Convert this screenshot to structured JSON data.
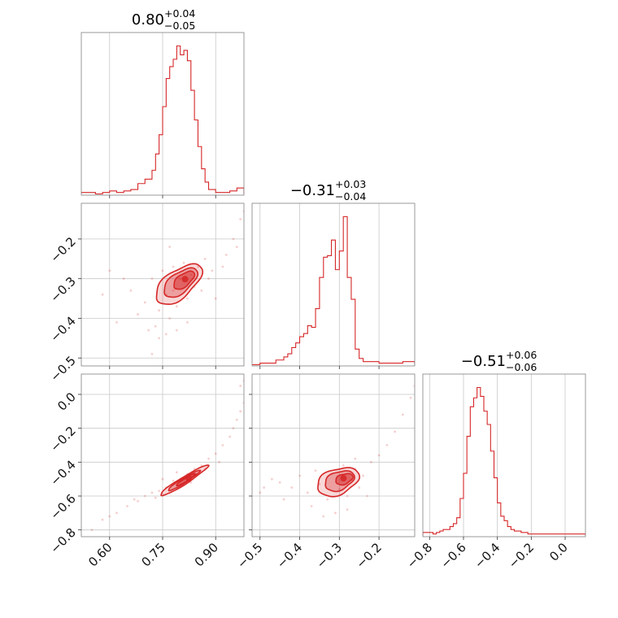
{
  "chart_data": {
    "type": "corner",
    "color": "#d62728",
    "parameters": [
      {
        "id": "p0",
        "median": 0.8,
        "title": {
          "value": "0.80",
          "plus": "+0.04",
          "minus": "−0.05"
        }
      },
      {
        "id": "p1",
        "median": -0.31,
        "title": {
          "value": "−0.31",
          "plus": "+0.03",
          "minus": "−0.04"
        }
      },
      {
        "id": "p2",
        "median": -0.51,
        "title": {
          "value": "−0.51",
          "plus": "+0.06",
          "minus": "−0.06"
        }
      }
    ],
    "axes": [
      {
        "range": [
          0.52,
          0.98
        ],
        "ticks": [
          0.6,
          0.75,
          0.9
        ],
        "ticklabels": [
          "0.60",
          "0.75",
          "0.90"
        ]
      },
      {
        "range": [
          -0.52,
          -0.11
        ],
        "ticks": [
          -0.5,
          -0.4,
          -0.3,
          -0.2
        ],
        "ticklabels": [
          "−0.5",
          "−0.4",
          "−0.3",
          "−0.2"
        ]
      },
      {
        "range": [
          -0.84,
          0.12
        ],
        "ticks": [
          -0.8,
          -0.6,
          -0.4,
          -0.2,
          0.0
        ],
        "ticklabels": [
          "−0.8",
          "−0.6",
          "−0.4",
          "−0.2",
          "0.0"
        ]
      }
    ],
    "histograms": [
      {
        "param": 0,
        "edges": [
          0.52,
          0.54,
          0.56,
          0.58,
          0.6,
          0.62,
          0.64,
          0.66,
          0.68,
          0.7,
          0.72,
          0.73,
          0.74,
          0.75,
          0.76,
          0.77,
          0.78,
          0.79,
          0.8,
          0.81,
          0.82,
          0.83,
          0.84,
          0.85,
          0.86,
          0.87,
          0.88,
          0.9,
          0.92,
          0.94,
          0.96,
          0.98
        ],
        "counts": [
          1,
          1,
          0,
          1,
          2,
          1,
          2,
          3,
          7,
          10,
          16,
          27,
          40,
          59,
          78,
          86,
          91,
          100,
          94,
          97,
          90,
          70,
          50,
          32,
          17,
          8,
          3,
          1,
          1,
          2,
          4
        ]
      },
      {
        "param": 1,
        "edges": [
          -0.52,
          -0.5,
          -0.48,
          -0.46,
          -0.44,
          -0.43,
          -0.42,
          -0.41,
          -0.4,
          -0.39,
          -0.38,
          -0.37,
          -0.36,
          -0.35,
          -0.34,
          -0.33,
          -0.32,
          -0.31,
          -0.3,
          -0.29,
          -0.28,
          -0.27,
          -0.26,
          -0.25,
          -0.24,
          -0.22,
          -0.2,
          -0.18,
          -0.16,
          -0.14,
          -0.11
        ],
        "counts": [
          0,
          1,
          1,
          3,
          5,
          7,
          11,
          14,
          18,
          20,
          25,
          24,
          36,
          56,
          69,
          70,
          80,
          61,
          73,
          95,
          56,
          42,
          10,
          4,
          2,
          2,
          1,
          1,
          1,
          2
        ]
      },
      {
        "param": 2,
        "edges": [
          -0.84,
          -0.82,
          -0.8,
          -0.78,
          -0.76,
          -0.74,
          -0.72,
          -0.7,
          -0.68,
          -0.66,
          -0.64,
          -0.62,
          -0.6,
          -0.58,
          -0.56,
          -0.54,
          -0.52,
          -0.5,
          -0.48,
          -0.46,
          -0.44,
          -0.42,
          -0.4,
          -0.38,
          -0.36,
          -0.34,
          -0.32,
          -0.3,
          -0.26,
          -0.22,
          -0.16,
          -0.1,
          0.0,
          0.05,
          0.12
        ],
        "counts": [
          2,
          2,
          2,
          1,
          2,
          3,
          4,
          4,
          6,
          8,
          12,
          25,
          42,
          67,
          87,
          93,
          100,
          94,
          84,
          75,
          57,
          39,
          22,
          13,
          10,
          6,
          4,
          3,
          2,
          1,
          1,
          1,
          1,
          1
        ]
      }
    ],
    "pairs": [
      {
        "x": 0,
        "y": 1,
        "center": [
          0.8,
          -0.31
        ],
        "sd": [
          0.045,
          0.035
        ],
        "corr": 0.6,
        "points": [
          [
            0.7,
            -0.36
          ],
          [
            0.72,
            -0.3
          ],
          [
            0.73,
            -0.42
          ],
          [
            0.74,
            -0.38
          ],
          [
            0.75,
            -0.28
          ],
          [
            0.76,
            -0.34
          ],
          [
            0.77,
            -0.4
          ],
          [
            0.78,
            -0.27
          ],
          [
            0.78,
            -0.33
          ],
          [
            0.79,
            -0.37
          ],
          [
            0.8,
            -0.3
          ],
          [
            0.81,
            -0.26
          ],
          [
            0.82,
            -0.35
          ],
          [
            0.83,
            -0.29
          ],
          [
            0.84,
            -0.32
          ],
          [
            0.85,
            -0.27
          ],
          [
            0.86,
            -0.33
          ],
          [
            0.87,
            -0.25
          ],
          [
            0.88,
            -0.3
          ],
          [
            0.89,
            -0.28
          ],
          [
            0.9,
            -0.35
          ],
          [
            0.92,
            -0.27
          ],
          [
            0.68,
            -0.39
          ],
          [
            0.66,
            -0.33
          ],
          [
            0.74,
            -0.45
          ],
          [
            0.76,
            -0.44
          ],
          [
            0.82,
            -0.41
          ],
          [
            0.6,
            -0.28
          ],
          [
            0.58,
            -0.34
          ],
          [
            0.64,
            -0.3
          ],
          [
            0.93,
            -0.24
          ],
          [
            0.95,
            -0.2
          ],
          [
            0.97,
            -0.15
          ],
          [
            0.98,
            -0.13
          ],
          [
            0.96,
            -0.22
          ],
          [
            0.62,
            -0.41
          ],
          [
            0.71,
            -0.43
          ],
          [
            0.79,
            -0.43
          ],
          [
            0.77,
            -0.22
          ],
          [
            0.72,
            -0.49
          ]
        ],
        "contours": [
          {
            "level": "1sigma",
            "sx": 0.65,
            "sy": 0.65,
            "dx": 0.01,
            "dy": 0.006
          },
          {
            "level": "1.5sigma",
            "sx": 1.05,
            "sy": 1.05,
            "dx": 0.0,
            "dy": 0.0
          },
          {
            "level": "2sigma",
            "sx": 1.45,
            "sy": 1.45,
            "dx": -0.005,
            "dy": -0.004
          }
        ]
      },
      {
        "x": 0,
        "y": 2,
        "center": [
          0.81,
          -0.51
        ],
        "sd": [
          0.045,
          0.06
        ],
        "corr": 0.96,
        "points": [
          [
            0.7,
            -0.6
          ],
          [
            0.72,
            -0.58
          ],
          [
            0.74,
            -0.57
          ],
          [
            0.76,
            -0.55
          ],
          [
            0.78,
            -0.51
          ],
          [
            0.8,
            -0.5
          ],
          [
            0.82,
            -0.47
          ],
          [
            0.84,
            -0.44
          ],
          [
            0.86,
            -0.42
          ],
          [
            0.88,
            -0.38
          ],
          [
            0.9,
            -0.35
          ],
          [
            0.92,
            -0.3
          ],
          [
            0.94,
            -0.25
          ],
          [
            0.95,
            -0.2
          ],
          [
            0.96,
            -0.15
          ],
          [
            0.97,
            -0.1
          ],
          [
            0.98,
            -0.05
          ],
          [
            0.65,
            -0.66
          ],
          [
            0.68,
            -0.63
          ],
          [
            0.62,
            -0.7
          ],
          [
            0.58,
            -0.74
          ],
          [
            0.55,
            -0.8
          ],
          [
            0.6,
            -0.72
          ],
          [
            0.67,
            -0.62
          ],
          [
            0.73,
            -0.61
          ],
          [
            0.75,
            -0.5
          ],
          [
            0.79,
            -0.46
          ],
          [
            0.83,
            -0.52
          ],
          [
            0.87,
            -0.44
          ],
          [
            0.91,
            -0.4
          ],
          [
            0.97,
            0.05
          ],
          [
            0.98,
            0.08
          ]
        ],
        "contours": [
          {
            "level": "1sigma",
            "sx": 0.6,
            "sy": 0.6,
            "dx": 0.005,
            "dy": 0.005
          },
          {
            "level": "1.5sigma",
            "sx": 1.0,
            "sy": 1.0,
            "dx": 0.0,
            "dy": 0.0
          },
          {
            "level": "2sigma",
            "sx": 1.5,
            "sy": 1.5,
            "dx": 0.0,
            "dy": 0.0
          }
        ]
      },
      {
        "x": 1,
        "y": 2,
        "center": [
          -0.3,
          -0.51
        ],
        "sd": [
          0.035,
          0.06
        ],
        "corr": 0.35,
        "points": [
          [
            -0.45,
            -0.52
          ],
          [
            -0.42,
            -0.55
          ],
          [
            -0.4,
            -0.48
          ],
          [
            -0.38,
            -0.58
          ],
          [
            -0.36,
            -0.45
          ],
          [
            -0.35,
            -0.53
          ],
          [
            -0.33,
            -0.62
          ],
          [
            -0.32,
            -0.47
          ],
          [
            -0.3,
            -0.56
          ],
          [
            -0.29,
            -0.42
          ],
          [
            -0.28,
            -0.6
          ],
          [
            -0.27,
            -0.5
          ],
          [
            -0.26,
            -0.44
          ],
          [
            -0.25,
            -0.55
          ],
          [
            -0.24,
            -0.48
          ],
          [
            -0.47,
            -0.5
          ],
          [
            -0.49,
            -0.55
          ],
          [
            -0.44,
            -0.62
          ],
          [
            -0.34,
            -0.72
          ],
          [
            -0.31,
            -0.7
          ],
          [
            -0.28,
            -0.68
          ],
          [
            -0.22,
            -0.4
          ],
          [
            -0.2,
            -0.36
          ],
          [
            -0.18,
            -0.3
          ],
          [
            -0.16,
            -0.22
          ],
          [
            -0.14,
            -0.12
          ],
          [
            -0.12,
            -0.02
          ],
          [
            -0.11,
            0.05
          ],
          [
            -0.5,
            -0.58
          ],
          [
            -0.37,
            -0.66
          ],
          [
            -0.23,
            -0.6
          ],
          [
            -0.26,
            -0.38
          ]
        ],
        "contours": [
          {
            "level": "1sigma",
            "sx": 0.62,
            "sy": 0.55,
            "dx": 0.012,
            "dy": 0.01
          },
          {
            "level": "1.5sigma",
            "sx": 1.05,
            "sy": 1.0,
            "dx": 0.0,
            "dy": 0.0
          },
          {
            "level": "2sigma",
            "sx": 1.5,
            "sy": 1.4,
            "dx": -0.004,
            "dy": -0.005
          }
        ]
      }
    ],
    "grid": true
  }
}
